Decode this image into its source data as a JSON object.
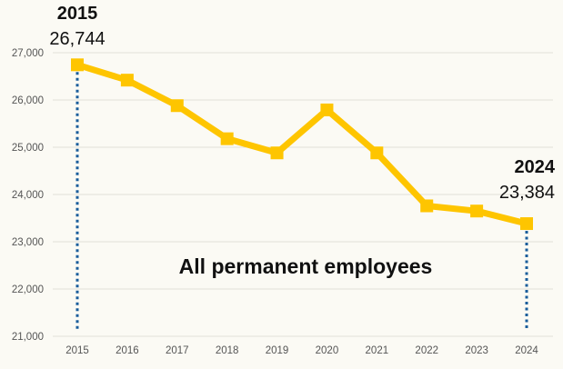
{
  "chart_data": {
    "type": "line",
    "title": "All permanent employees",
    "x": [
      "2015",
      "2016",
      "2017",
      "2018",
      "2019",
      "2020",
      "2021",
      "2022",
      "2023",
      "2024"
    ],
    "series": [
      {
        "values": [
          26744,
          26420,
          25880,
          25180,
          24880,
          25790,
          24880,
          23760,
          23650,
          23384
        ]
      }
    ],
    "ylim": [
      21000,
      27000
    ],
    "yticks": [
      "21,000",
      "22,000",
      "23,000",
      "24,000",
      "25,000",
      "26,000",
      "27,000"
    ],
    "grid": true,
    "colors": {
      "line": "#fec500",
      "callout_line": "#1a5d9b",
      "grid": "#e2e0d8"
    },
    "annotations": [
      {
        "x_index": 0,
        "year": "2015",
        "value": "26,744"
      },
      {
        "x_index": 9,
        "year": "2024",
        "value": "23,384"
      }
    ]
  }
}
